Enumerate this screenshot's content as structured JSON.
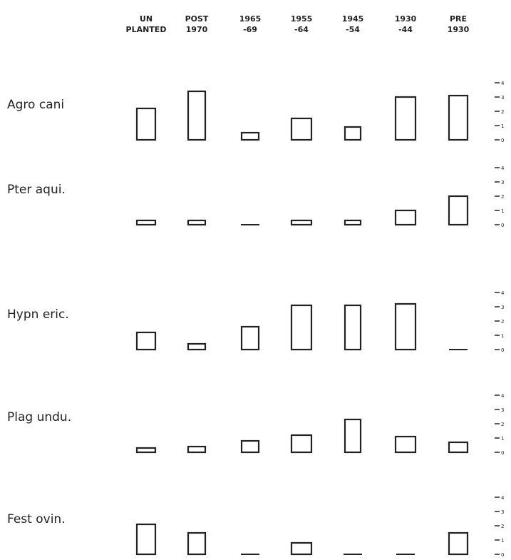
{
  "chart_data": {
    "type": "bar",
    "categories": [
      "UN PLANTED",
      "POST 1970",
      "1965 -69",
      "1955 -64",
      "1945 -54",
      "1930 -44",
      "PRE 1930"
    ],
    "category_lines": [
      [
        "UN",
        "PLANTED"
      ],
      [
        "POST",
        "1970"
      ],
      [
        "1965",
        "-69"
      ],
      [
        "1955",
        "-64"
      ],
      [
        "1945",
        "-54"
      ],
      [
        "1930",
        "-44"
      ],
      [
        "PRE",
        "1930"
      ]
    ],
    "ylim": [
      0,
      4
    ],
    "yticks": [
      "0",
      "1",
      "2",
      "3",
      "4"
    ],
    "panels": [
      {
        "name": "Agro cani",
        "values": [
          2.2,
          3.4,
          0.5,
          1.5,
          0.9,
          3.0,
          3.1
        ]
      },
      {
        "name": "Pter aqui.",
        "values": [
          0.3,
          0.3,
          0.0,
          0.3,
          0.3,
          1.0,
          2.0
        ]
      },
      {
        "name": "Hypn eric.",
        "values": [
          1.2,
          0.4,
          1.6,
          3.1,
          3.1,
          3.2,
          0.0
        ]
      },
      {
        "name": "Plag undu.",
        "values": [
          0.3,
          0.4,
          0.8,
          1.2,
          2.3,
          1.1,
          0.7
        ]
      },
      {
        "name": "Fest ovin.",
        "values": [
          2.1,
          1.5,
          0.0,
          0.8,
          0.0,
          0.0,
          1.5
        ]
      }
    ]
  }
}
